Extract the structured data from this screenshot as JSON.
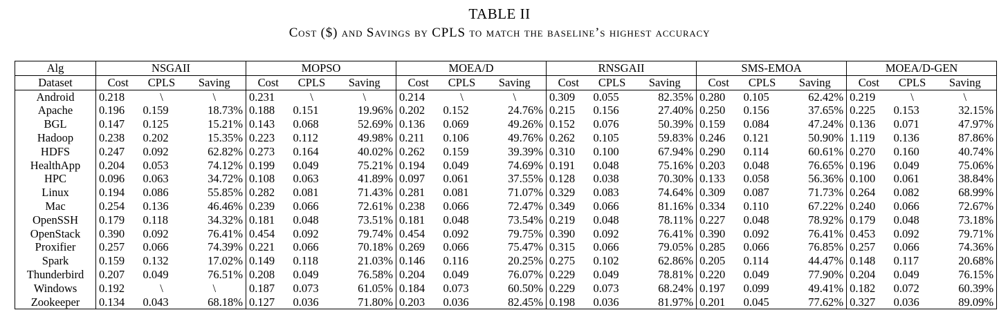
{
  "caption": {
    "label": "TABLE II",
    "title": "Cost ($) and Savings by CPLS to match the baseline’s highest accuracy"
  },
  "table": {
    "corner_top": "Alg",
    "corner_bottom": "Dataset",
    "algorithms": [
      "NSGAII",
      "MOPSO",
      "MOEA/D",
      "RNSGAII",
      "SMS-EMOA",
      "MOEA/D-GEN"
    ],
    "sub_columns": [
      "Cost",
      "CPLS",
      "Saving"
    ],
    "rows": [
      {
        "dataset": "Android",
        "cells": [
          "0.218",
          "\\",
          "\\",
          "0.231",
          "\\",
          "\\",
          "0.214",
          "\\",
          "\\",
          "0.309",
          "0.055",
          "82.35%",
          "0.280",
          "0.105",
          "62.42%",
          "0.219",
          "\\",
          "\\"
        ]
      },
      {
        "dataset": "Apache",
        "cells": [
          "0.196",
          "0.159",
          "18.73%",
          "0.188",
          "0.151",
          "19.96%",
          "0.202",
          "0.152",
          "24.76%",
          "0.215",
          "0.156",
          "27.40%",
          "0.250",
          "0.156",
          "37.65%",
          "0.225",
          "0.153",
          "32.15%"
        ]
      },
      {
        "dataset": "BGL",
        "cells": [
          "0.147",
          "0.125",
          "15.21%",
          "0.143",
          "0.068",
          "52.69%",
          "0.136",
          "0.069",
          "49.26%",
          "0.152",
          "0.076",
          "50.39%",
          "0.159",
          "0.084",
          "47.24%",
          "0.136",
          "0.071",
          "47.97%"
        ]
      },
      {
        "dataset": "Hadoop",
        "cells": [
          "0.238",
          "0.202",
          "15.35%",
          "0.223",
          "0.112",
          "49.98%",
          "0.211",
          "0.106",
          "49.76%",
          "0.262",
          "0.105",
          "59.83%",
          "0.246",
          "0.121",
          "50.90%",
          "1.119",
          "0.136",
          "87.86%"
        ]
      },
      {
        "dataset": "HDFS",
        "cells": [
          "0.247",
          "0.092",
          "62.82%",
          "0.273",
          "0.164",
          "40.02%",
          "0.262",
          "0.159",
          "39.39%",
          "0.310",
          "0.100",
          "67.94%",
          "0.290",
          "0.114",
          "60.61%",
          "0.270",
          "0.160",
          "40.74%"
        ]
      },
      {
        "dataset": "HealthApp",
        "cells": [
          "0.204",
          "0.053",
          "74.12%",
          "0.199",
          "0.049",
          "75.21%",
          "0.194",
          "0.049",
          "74.69%",
          "0.191",
          "0.048",
          "75.16%",
          "0.203",
          "0.048",
          "76.65%",
          "0.196",
          "0.049",
          "75.06%"
        ]
      },
      {
        "dataset": "HPC",
        "cells": [
          "0.096",
          "0.063",
          "34.72%",
          "0.108",
          "0.063",
          "41.89%",
          "0.097",
          "0.061",
          "37.55%",
          "0.128",
          "0.038",
          "70.30%",
          "0.133",
          "0.058",
          "56.36%",
          "0.100",
          "0.061",
          "38.84%"
        ]
      },
      {
        "dataset": "Linux",
        "cells": [
          "0.194",
          "0.086",
          "55.85%",
          "0.282",
          "0.081",
          "71.43%",
          "0.281",
          "0.081",
          "71.07%",
          "0.329",
          "0.083",
          "74.64%",
          "0.309",
          "0.087",
          "71.73%",
          "0.264",
          "0.082",
          "68.99%"
        ]
      },
      {
        "dataset": "Mac",
        "cells": [
          "0.254",
          "0.136",
          "46.46%",
          "0.239",
          "0.066",
          "72.61%",
          "0.238",
          "0.066",
          "72.47%",
          "0.349",
          "0.066",
          "81.16%",
          "0.334",
          "0.110",
          "67.22%",
          "0.240",
          "0.066",
          "72.67%"
        ]
      },
      {
        "dataset": "OpenSSH",
        "cells": [
          "0.179",
          "0.118",
          "34.32%",
          "0.181",
          "0.048",
          "73.51%",
          "0.181",
          "0.048",
          "73.54%",
          "0.219",
          "0.048",
          "78.11%",
          "0.227",
          "0.048",
          "78.92%",
          "0.179",
          "0.048",
          "73.18%"
        ]
      },
      {
        "dataset": "OpenStack",
        "cells": [
          "0.390",
          "0.092",
          "76.41%",
          "0.454",
          "0.092",
          "79.74%",
          "0.454",
          "0.092",
          "79.75%",
          "0.390",
          "0.092",
          "76.41%",
          "0.390",
          "0.092",
          "76.41%",
          "0.453",
          "0.092",
          "79.71%"
        ]
      },
      {
        "dataset": "Proxifier",
        "cells": [
          "0.257",
          "0.066",
          "74.39%",
          "0.221",
          "0.066",
          "70.18%",
          "0.269",
          "0.066",
          "75.47%",
          "0.315",
          "0.066",
          "79.05%",
          "0.285",
          "0.066",
          "76.85%",
          "0.257",
          "0.066",
          "74.36%"
        ]
      },
      {
        "dataset": "Spark",
        "cells": [
          "0.159",
          "0.132",
          "17.02%",
          "0.149",
          "0.118",
          "21.03%",
          "0.146",
          "0.116",
          "20.25%",
          "0.275",
          "0.102",
          "62.86%",
          "0.205",
          "0.114",
          "44.47%",
          "0.148",
          "0.117",
          "20.68%"
        ]
      },
      {
        "dataset": "Thunderbird",
        "cells": [
          "0.207",
          "0.049",
          "76.51%",
          "0.208",
          "0.049",
          "76.58%",
          "0.204",
          "0.049",
          "76.07%",
          "0.229",
          "0.049",
          "78.81%",
          "0.220",
          "0.049",
          "77.90%",
          "0.204",
          "0.049",
          "76.15%"
        ]
      },
      {
        "dataset": "Windows",
        "cells": [
          "0.192",
          "\\",
          "\\",
          "0.187",
          "0.073",
          "61.05%",
          "0.184",
          "0.073",
          "60.50%",
          "0.229",
          "0.073",
          "68.24%",
          "0.197",
          "0.099",
          "49.41%",
          "0.182",
          "0.072",
          "60.39%"
        ]
      },
      {
        "dataset": "Zookeeper",
        "cells": [
          "0.134",
          "0.043",
          "68.18%",
          "0.127",
          "0.036",
          "71.80%",
          "0.203",
          "0.036",
          "82.45%",
          "0.198",
          "0.036",
          "81.97%",
          "0.201",
          "0.045",
          "77.62%",
          "0.327",
          "0.036",
          "89.09%"
        ]
      }
    ]
  }
}
